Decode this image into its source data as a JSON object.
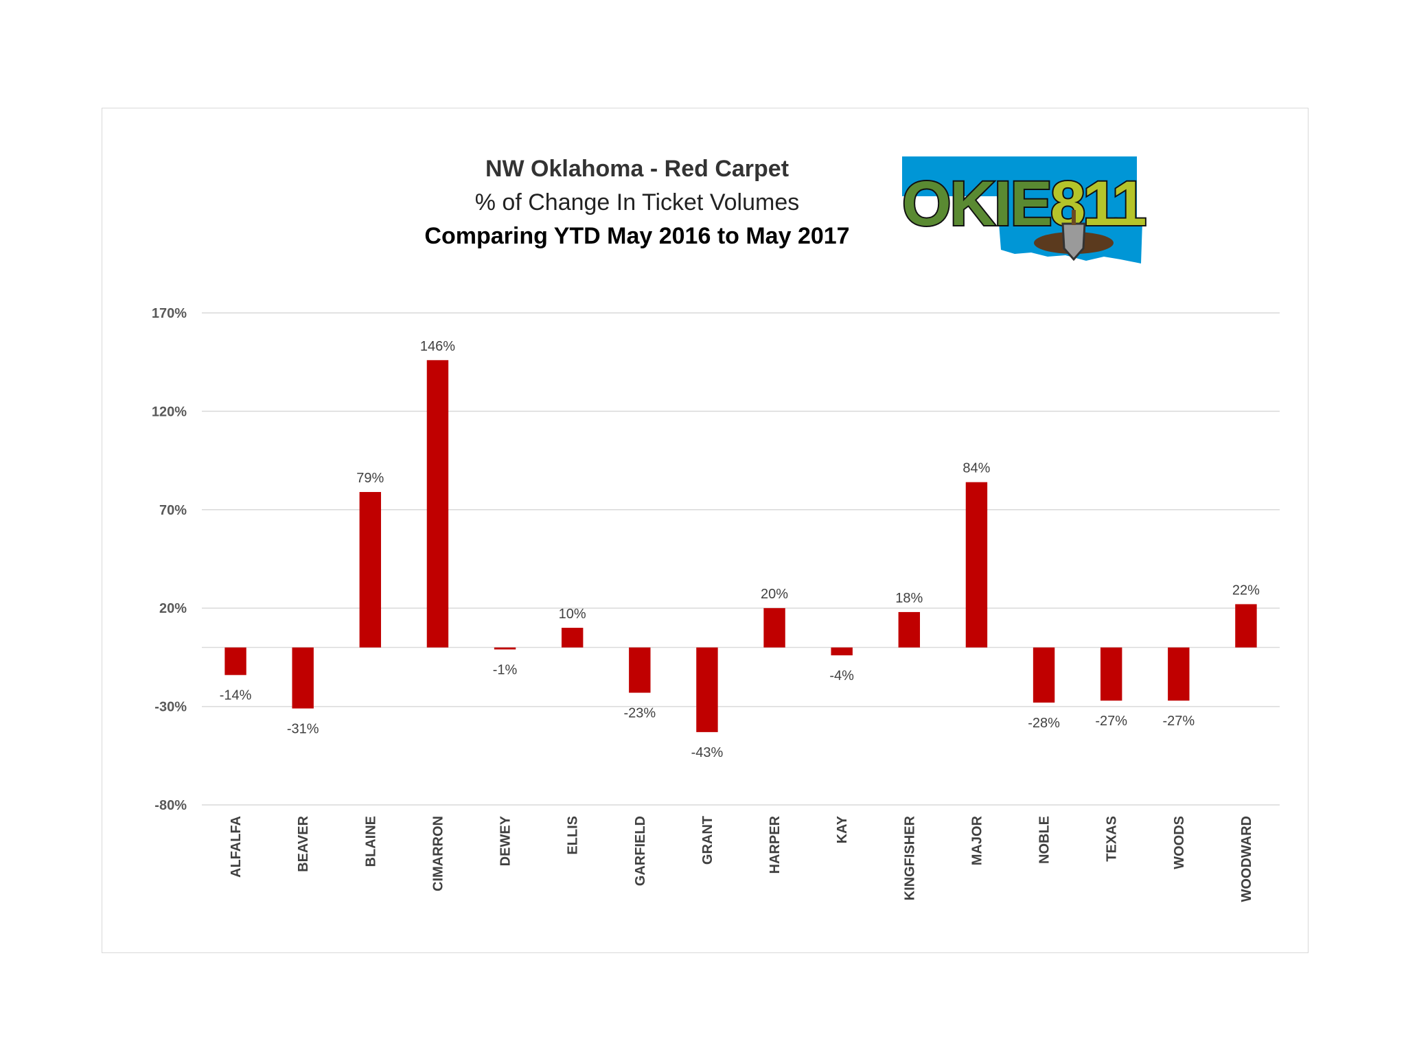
{
  "chart_data": {
    "type": "bar",
    "title": "NW Oklahoma - Red Carpet",
    "subtitle": "% of Change In Ticket Volumes",
    "subtitle2": "Comparing YTD May 2016 to May 2017",
    "categories": [
      "ALFALFA",
      "BEAVER",
      "BLAINE",
      "CIMARRON",
      "DEWEY",
      "ELLIS",
      "GARFIELD",
      "GRANT",
      "HARPER",
      "KAY",
      "KINGFISHER",
      "MAJOR",
      "NOBLE",
      "TEXAS",
      "WOODS",
      "WOODWARD"
    ],
    "values": [
      -14,
      -31,
      79,
      146,
      -1,
      10,
      -23,
      -43,
      20,
      -4,
      18,
      84,
      -28,
      -27,
      -27,
      22
    ],
    "data_labels": [
      "-14%",
      "-31%",
      "79%",
      "146%",
      "-1%",
      "10%",
      "-23%",
      "-43%",
      "20%",
      "-4%",
      "18%",
      "84%",
      "-28%",
      "-27%",
      "-27%",
      "22%"
    ],
    "yticks": [
      170,
      120,
      70,
      20,
      -30,
      -80
    ],
    "ytick_labels": [
      "170%",
      "120%",
      "70%",
      "20%",
      "-30%",
      "-80%"
    ],
    "ylim": [
      -80,
      170
    ],
    "grid": true,
    "legend": "none",
    "bar_color": "#c00000",
    "xlabel": "",
    "ylabel": ""
  },
  "logo": {
    "text_okie": "OKIE",
    "text_811": "811",
    "color_state": "#0096d6",
    "color_okie": "#5a8a32",
    "color_811": "#b5c42a"
  }
}
